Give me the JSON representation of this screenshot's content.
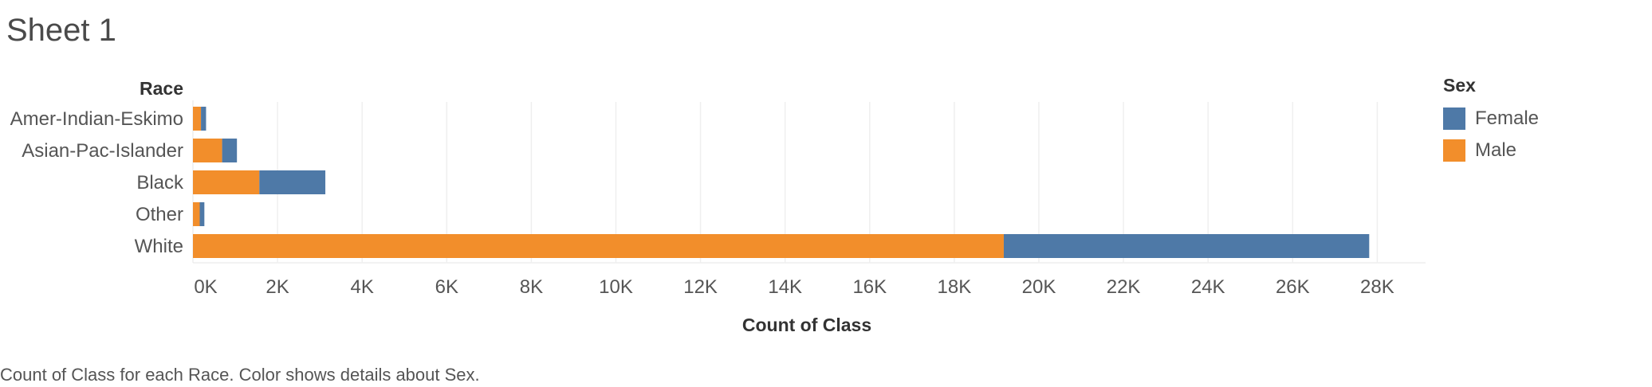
{
  "sheet": {
    "title": "Sheet 1"
  },
  "caption": "Count of Class for each Race.  Color shows details about Sex.",
  "legend": {
    "title": "Sex",
    "items": [
      {
        "label": "Female",
        "color": "#4e79a7"
      },
      {
        "label": "Male",
        "color": "#f28e2b"
      }
    ]
  },
  "chart_data": {
    "type": "bar",
    "orientation": "horizontal",
    "stacked": true,
    "row_header": "Race",
    "categories": [
      "Amer-Indian-Eskimo",
      "Asian-Pac-Islander",
      "Black",
      "Other",
      "White"
    ],
    "series": [
      {
        "name": "Male",
        "color": "#f28e2b",
        "values": [
          190,
          690,
          1570,
          160,
          19170
        ]
      },
      {
        "name": "Female",
        "color": "#4e79a7",
        "values": [
          120,
          350,
          1560,
          110,
          8640
        ]
      }
    ],
    "xlabel": "Count of Class",
    "xlim": [
      0,
      29000
    ],
    "xticks": [
      0,
      2000,
      4000,
      6000,
      8000,
      10000,
      12000,
      14000,
      16000,
      18000,
      20000,
      22000,
      24000,
      26000,
      28000
    ],
    "xtick_labels": [
      "0K",
      "2K",
      "4K",
      "6K",
      "8K",
      "10K",
      "12K",
      "14K",
      "16K",
      "18K",
      "20K",
      "22K",
      "24K",
      "26K",
      "28K"
    ],
    "grid": true,
    "legend_position": "right"
  }
}
